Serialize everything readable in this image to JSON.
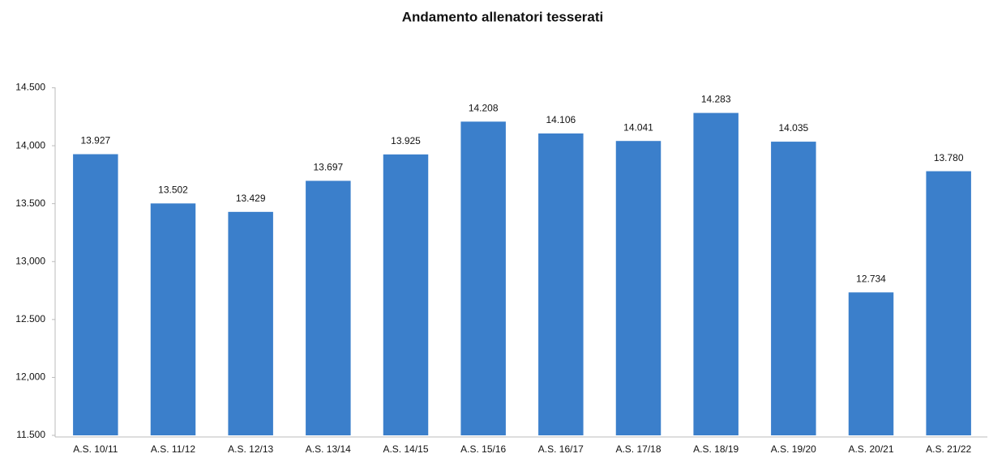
{
  "chart_data": {
    "type": "bar",
    "title": "Andamento allenatori tesserati",
    "categories": [
      "A.S. 10/11",
      "A.S. 11/12",
      "A.S. 12/13",
      "A.S. 13/14",
      "A.S. 14/15",
      "A.S. 15/16",
      "A.S. 16/17",
      "A.S. 17/18",
      "A.S. 18/19",
      "A.S. 19/20",
      "A.S. 20/21",
      "A.S. 21/22"
    ],
    "values": [
      13927,
      13502,
      13429,
      13697,
      13925,
      14208,
      14106,
      14041,
      14283,
      14035,
      12734,
      13780
    ],
    "value_labels": [
      "13.927",
      "13.502",
      "13.429",
      "13.697",
      "13.925",
      "14.208",
      "14.106",
      "14.041",
      "14.283",
      "14.035",
      "12.734",
      "13.780"
    ],
    "color": "#3b7fcb",
    "ylim": [
      11500,
      14500
    ],
    "yticks": [
      {
        "value": 11500,
        "label": "11.500"
      },
      {
        "value": 12000,
        "label": "12,000"
      },
      {
        "value": 12500,
        "label": "12.500"
      },
      {
        "value": 13000,
        "label": "13,000"
      },
      {
        "value": 13500,
        "label": "13.500"
      },
      {
        "value": 14000,
        "label": "14,000"
      },
      {
        "value": 14500,
        "label": "14.500"
      }
    ],
    "grid": false
  }
}
